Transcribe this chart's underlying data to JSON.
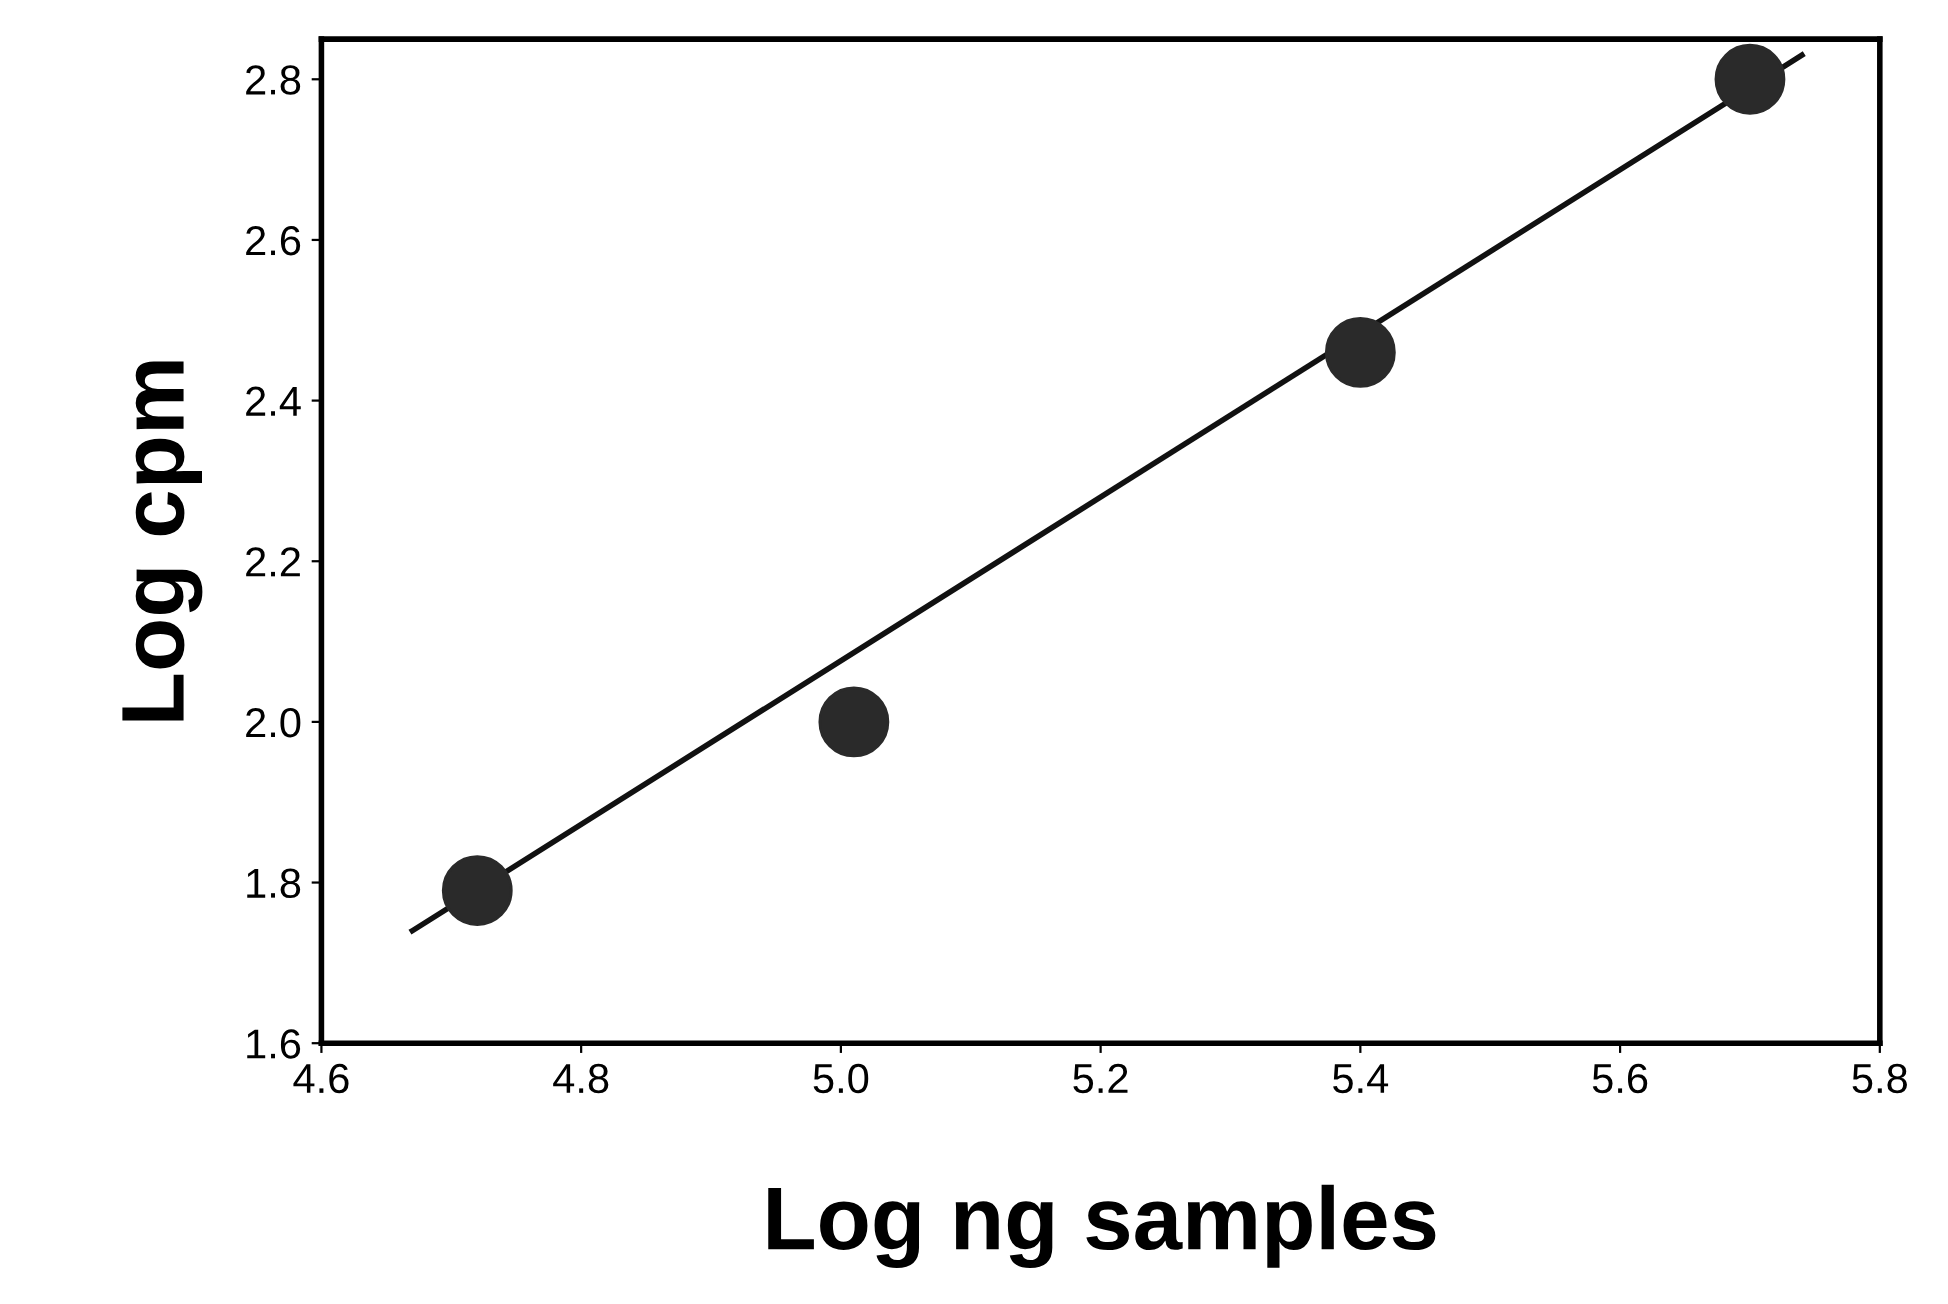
{
  "chart_data": {
    "type": "scatter",
    "xlabel": "Log ng samples",
    "ylabel": "Log cpm",
    "xlim": [
      4.6,
      5.8
    ],
    "ylim": [
      1.6,
      2.85
    ],
    "xticks": [
      4.6,
      4.8,
      {
        "value": 5.0,
        "label": "5.0"
      },
      5.2,
      5.4,
      5.6,
      5.8
    ],
    "yticks": [
      1.6,
      1.8,
      {
        "value": 2.0,
        "label": "2.0"
      },
      2.2,
      2.4,
      2.6,
      2.8
    ],
    "grid": false,
    "series": [
      {
        "marker": "circle",
        "color": "#2a2a2a",
        "x": [
          4.72,
          5.01,
          5.4,
          5.7
        ],
        "values": [
          1.79,
          2.0,
          2.46,
          2.8
        ]
      },
      {
        "type": "line",
        "color": "#111111",
        "x": [
          4.67,
          5.74
        ],
        "values": [
          1.74,
          2.83
        ],
        "line_style": "solid"
      }
    ]
  }
}
